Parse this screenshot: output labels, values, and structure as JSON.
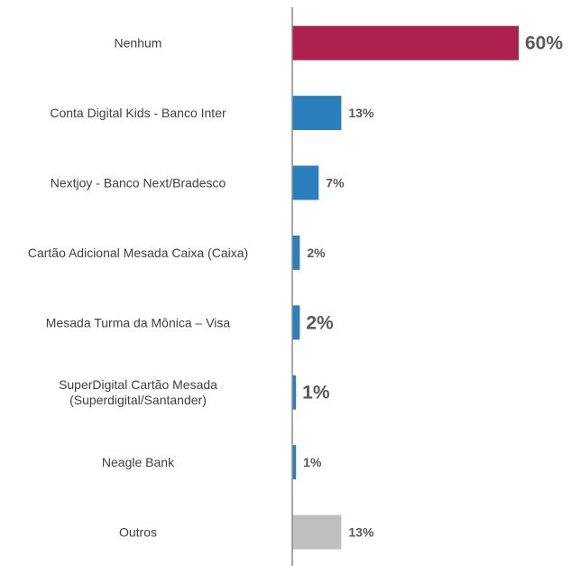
{
  "chart_data": {
    "type": "bar",
    "orientation": "horizontal",
    "title": "",
    "xlabel": "",
    "ylabel": "",
    "grid": false,
    "legend": "none",
    "xlim": [
      0,
      60
    ],
    "categories": [
      [
        "Nenhum"
      ],
      [
        "Conta Digital Kids - Banco Inter"
      ],
      [
        "Nextjoy - Banco Next/Bradesco"
      ],
      [
        "Cartão Adicional Mesada Caixa (Caixa)"
      ],
      [
        "Mesada Turma da Mônica – Visa"
      ],
      [
        "SuperDigital Cartão Mesada",
        "(Superdigital/Santander)"
      ],
      [
        "Neagle Bank"
      ],
      [
        "Outros"
      ]
    ],
    "values": [
      60,
      13,
      7,
      2,
      2,
      1,
      1,
      13
    ],
    "value_labels": [
      "60%",
      "13%",
      "7%",
      "2%",
      "2%",
      "1%",
      "1%",
      "13%"
    ],
    "bar_colors": [
      "#ad2150",
      "#2b7fbd",
      "#2b7fbd",
      "#2b7fbd",
      "#2b7fbd",
      "#2b7fbd",
      "#2b7fbd",
      "#bfbfbf"
    ],
    "value_label_emphasis": [
      "large",
      "normal",
      "normal",
      "normal",
      "large",
      "large",
      "normal",
      "normal"
    ],
    "axis_color": "#8c8c8c"
  }
}
